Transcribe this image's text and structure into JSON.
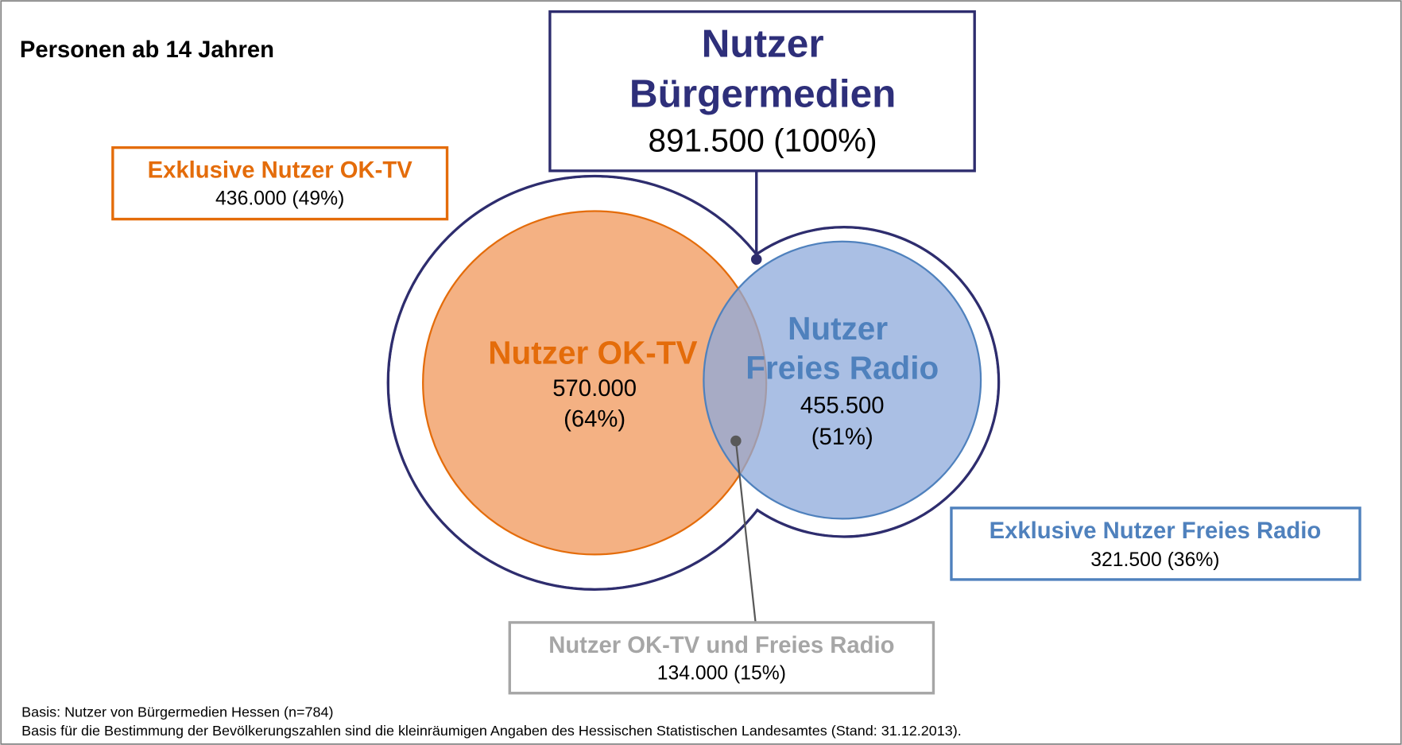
{
  "title": "Personen ab 14 Jahren",
  "total": {
    "label_line1": "Nutzer",
    "label_line2": "Bürgermedien",
    "value": "891.500 (100%)"
  },
  "ok_tv": {
    "label": "Nutzer OK-TV",
    "value": "570.000",
    "share": "(64%)"
  },
  "freies_radio": {
    "label_line1": "Nutzer",
    "label_line2": "Freies Radio",
    "value": "455.500",
    "share": "(51%)"
  },
  "exclusive_ok_tv": {
    "label": "Exklusive Nutzer OK-TV",
    "value": "436.000 (49%)"
  },
  "exclusive_freies_radio": {
    "label": "Exklusive Nutzer Freies Radio",
    "value": "321.500 (36%)"
  },
  "both": {
    "label": "Nutzer OK-TV und Freies Radio",
    "value": "134.000 (15%)"
  },
  "footnotes": [
    "Basis: Nutzer von Bürgermedien Hessen (n=784)",
    "Basis für die Bestimmung der Bevölkerungszahlen sind die kleinräumigen Angaben des Hessischen Statistischen Landesamtes (Stand: 31.12.2013)."
  ]
}
